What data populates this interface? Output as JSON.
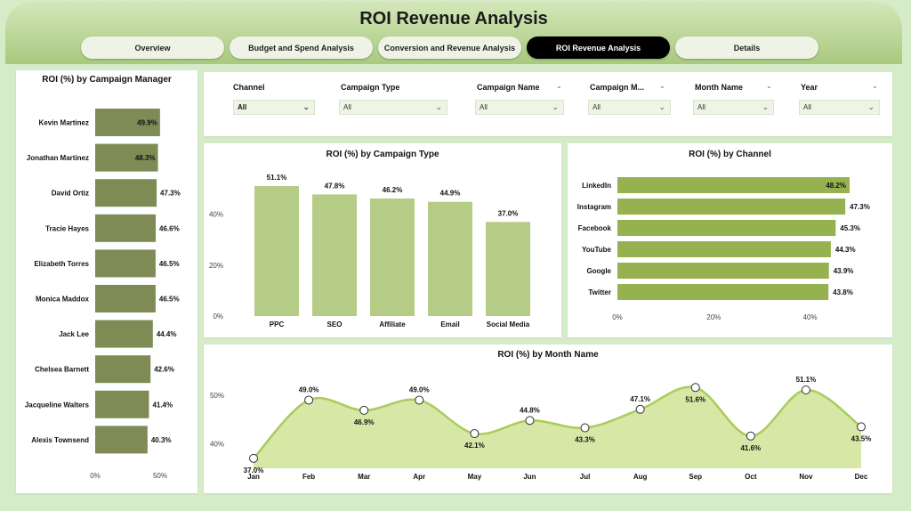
{
  "header": {
    "title": "ROI Revenue Analysis"
  },
  "tabs": [
    {
      "label": "Overview",
      "active": false
    },
    {
      "label": "Budget and Spend Analysis",
      "active": false
    },
    {
      "label": "Conversion and Revenue Analysis",
      "active": false
    },
    {
      "label": "ROI Revenue Analysis",
      "active": true
    },
    {
      "label": "Details",
      "active": false
    }
  ],
  "filters": [
    {
      "label": "Channel",
      "value": "All",
      "icon": "chevron-down-icon"
    },
    {
      "label": "Campaign Type",
      "value": "All",
      "icon": "chevron-down-icon"
    },
    {
      "label": "Campaign Name",
      "value": "All",
      "icon": "chevron-down-icon"
    },
    {
      "label": "Campaign M...",
      "value": "All",
      "icon": "chevron-down-icon"
    },
    {
      "label": "Month Name",
      "value": "All",
      "icon": "chevron-down-icon"
    },
    {
      "label": "Year",
      "value": "All",
      "icon": "chevron-down-icon"
    }
  ],
  "colors": {
    "manager_bar": "#7e8b55",
    "campaign_bar": "#b5cc86",
    "channel_bar": "#96b14f",
    "line": "#a9cc5b",
    "area": "#d7e8a6"
  },
  "chart_data": [
    {
      "id": "manager",
      "type": "bar",
      "orientation": "horizontal",
      "title": "ROI (%) by Campaign Manager",
      "categories": [
        "Kevin Martinez",
        "Jonathan Martinez",
        "David Ortiz",
        "Tracie Hayes",
        "Elizabeth Torres",
        "Monica Maddox",
        "Jack Lee",
        "Chelsea Barnett",
        "Jacqueline Walters",
        "Alexis Townsend"
      ],
      "values": [
        49.9,
        48.3,
        47.3,
        46.6,
        46.5,
        46.5,
        44.4,
        42.6,
        41.4,
        40.3
      ],
      "labels": [
        "49.9%",
        "48.3%",
        "47.3%",
        "46.6%",
        "46.5%",
        "46.5%",
        "44.4%",
        "42.6%",
        "41.4%",
        "40.3%"
      ],
      "xlim": [
        0,
        50
      ],
      "xticks": [
        "0%",
        "50%"
      ]
    },
    {
      "id": "campaign_type",
      "type": "bar",
      "orientation": "vertical",
      "title": "ROI (%) by Campaign Type",
      "categories": [
        "PPC",
        "SEO",
        "Affiliate",
        "Email",
        "Social Media"
      ],
      "values": [
        51.1,
        47.8,
        46.2,
        44.9,
        37.0
      ],
      "labels": [
        "51.1%",
        "47.8%",
        "46.2%",
        "44.9%",
        "37.0%"
      ],
      "ylim": [
        0,
        51.1
      ],
      "yticks": [
        {
          "v": 0,
          "t": "0%"
        },
        {
          "v": 20,
          "t": "20%"
        },
        {
          "v": 40,
          "t": "40%"
        }
      ]
    },
    {
      "id": "channel",
      "type": "bar",
      "orientation": "horizontal",
      "title": "ROI (%) by Channel",
      "categories": [
        "LinkedIn",
        "Instagram",
        "Facebook",
        "YouTube",
        "Google",
        "Twitter"
      ],
      "values": [
        48.2,
        47.3,
        45.3,
        44.3,
        43.9,
        43.8
      ],
      "labels": [
        "48.2%",
        "47.3%",
        "45.3%",
        "44.3%",
        "43.9%",
        "43.8%"
      ],
      "xlim": [
        0,
        48.2
      ],
      "xticks": [
        {
          "v": 0,
          "t": "0%"
        },
        {
          "v": 20,
          "t": "20%"
        },
        {
          "v": 40,
          "t": "40%"
        }
      ]
    },
    {
      "id": "month",
      "type": "area",
      "title": "ROI (%) by Month Name",
      "categories": [
        "Jan",
        "Feb",
        "Mar",
        "Apr",
        "May",
        "Jun",
        "Jul",
        "Aug",
        "Sep",
        "Oct",
        "Nov",
        "Dec"
      ],
      "values": [
        37.0,
        49.0,
        46.9,
        49.0,
        42.1,
        44.8,
        43.3,
        47.1,
        51.6,
        41.6,
        51.1,
        43.5
      ],
      "labels": [
        "37.0%",
        "49.0%",
        "46.9%",
        "49.0%",
        "42.1%",
        "44.8%",
        "43.3%",
        "47.1%",
        "51.6%",
        "41.6%",
        "51.1%",
        "43.5%"
      ],
      "yticks": [
        {
          "v": 40,
          "t": "40%"
        },
        {
          "v": 50,
          "t": "50%"
        }
      ]
    }
  ]
}
